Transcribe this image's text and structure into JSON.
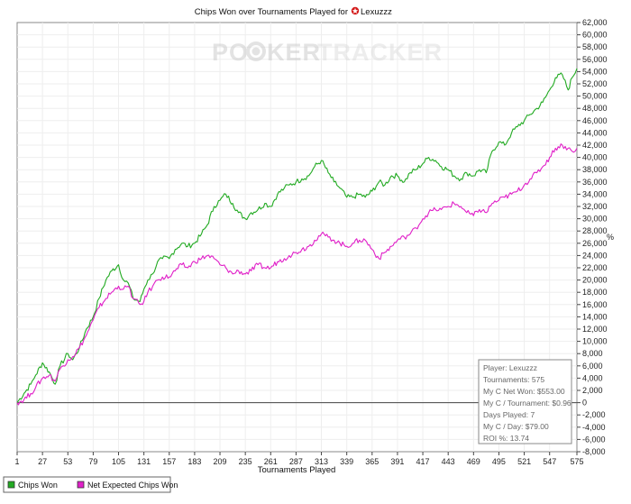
{
  "chart_data": {
    "type": "line",
    "title_prefix": "Chips Won over Tournaments Played for",
    "player_name": "Lexuzzz",
    "watermark": [
      "PO",
      "KER",
      "TRACKER"
    ],
    "xlabel": "Tournaments Played",
    "ylabel": "",
    "y_unit_glyph": "%",
    "xlim": [
      1,
      575
    ],
    "ylim": [
      -8000,
      62000
    ],
    "x_ticks": [
      1,
      27,
      53,
      79,
      105,
      131,
      157,
      183,
      209,
      235,
      261,
      287,
      313,
      339,
      365,
      391,
      417,
      443,
      469,
      495,
      521,
      547,
      575
    ],
    "y_ticks": [
      -8000,
      -6000,
      -4000,
      -2000,
      0,
      2000,
      4000,
      6000,
      8000,
      10000,
      12000,
      14000,
      16000,
      18000,
      20000,
      22000,
      24000,
      26000,
      28000,
      30000,
      32000,
      34000,
      36000,
      38000,
      40000,
      42000,
      44000,
      46000,
      48000,
      50000,
      52000,
      54000,
      56000,
      58000,
      60000,
      62000
    ],
    "y_tick_labels": [
      "-8,000",
      "-6,000",
      "-4,000",
      "-2,000",
      "0",
      "2,000",
      "4,000",
      "6,000",
      "8,000",
      "10,000",
      "12,000",
      "14,000",
      "16,000",
      "18,000",
      "20,000",
      "22,000",
      "24,000",
      "26,000",
      "28,000",
      "30,000",
      "32,000",
      "34,000",
      "36,000",
      "38,000",
      "40,000",
      "42,000",
      "44,000",
      "46,000",
      "48,000",
      "50,000",
      "52,000",
      "54,000",
      "56,000",
      "58,000",
      "60,000",
      "62,000"
    ],
    "grid": true,
    "legend_position": "bottom-left",
    "series": [
      {
        "name": "Chips Won",
        "color": "#22aa22",
        "x": [
          1,
          8,
          15,
          20,
          27,
          34,
          40,
          45,
          53,
          58,
          65,
          72,
          79,
          85,
          92,
          98,
          105,
          110,
          115,
          120,
          127,
          131,
          135,
          140,
          145,
          150,
          157,
          163,
          170,
          176,
          183,
          190,
          196,
          203,
          209,
          215,
          222,
          228,
          235,
          241,
          248,
          255,
          261,
          268,
          275,
          280,
          287,
          293,
          300,
          306,
          313,
          320,
          326,
          332,
          339,
          345,
          352,
          358,
          365,
          372,
          378,
          385,
          391,
          398,
          404,
          410,
          417,
          423,
          430,
          436,
          443,
          449,
          456,
          462,
          469,
          475,
          482,
          488,
          495,
          501,
          508,
          514,
          521,
          527,
          534,
          540,
          547,
          553,
          560,
          566,
          570,
          575
        ],
        "y": [
          0,
          1500,
          3000,
          4500,
          6500,
          5000,
          3000,
          6000,
          8000,
          7000,
          9000,
          12000,
          14000,
          17000,
          20000,
          21500,
          22500,
          20000,
          19500,
          17000,
          16500,
          18500,
          20000,
          21000,
          23000,
          23500,
          23500,
          25000,
          26000,
          25500,
          26000,
          27500,
          29000,
          32000,
          33000,
          34000,
          32500,
          31000,
          30000,
          31000,
          31500,
          32500,
          32000,
          34000,
          35000,
          35500,
          36000,
          36500,
          37000,
          38500,
          39500,
          37500,
          36000,
          35000,
          33500,
          33500,
          34000,
          33500,
          34500,
          36000,
          35500,
          37000,
          37000,
          36000,
          37500,
          38000,
          39000,
          40000,
          39500,
          38500,
          38000,
          37000,
          36500,
          37500,
          37000,
          38000,
          37500,
          41000,
          42500,
          42000,
          44000,
          45000,
          46000,
          47000,
          48000,
          49000,
          51000,
          53000,
          53500,
          51000,
          53000,
          54500
        ]
      },
      {
        "name": "Net Expected Chips Won",
        "color": "#e020c8",
        "x": [
          1,
          8,
          15,
          20,
          27,
          34,
          40,
          45,
          53,
          58,
          65,
          72,
          79,
          85,
          92,
          98,
          105,
          110,
          115,
          120,
          127,
          131,
          135,
          140,
          145,
          150,
          157,
          163,
          170,
          176,
          183,
          190,
          196,
          203,
          209,
          215,
          222,
          228,
          235,
          241,
          248,
          255,
          261,
          268,
          275,
          280,
          287,
          293,
          300,
          306,
          313,
          320,
          326,
          332,
          339,
          345,
          352,
          358,
          365,
          372,
          378,
          385,
          391,
          398,
          404,
          410,
          417,
          423,
          430,
          436,
          443,
          449,
          456,
          462,
          469,
          475,
          482,
          488,
          495,
          501,
          508,
          514,
          521,
          527,
          534,
          540,
          547,
          553,
          560,
          566,
          570,
          575
        ],
        "y": [
          0,
          500,
          1500,
          2500,
          4000,
          4500,
          3500,
          5500,
          7000,
          7500,
          9000,
          11000,
          13500,
          15500,
          17000,
          18000,
          19000,
          18500,
          19000,
          17000,
          16000,
          16500,
          18000,
          19000,
          20000,
          20500,
          20500,
          21500,
          22500,
          22000,
          23000,
          23500,
          24000,
          23500,
          22500,
          22000,
          21000,
          21500,
          21000,
          21500,
          22500,
          22000,
          22000,
          23000,
          23500,
          24000,
          24500,
          25000,
          25500,
          26500,
          27500,
          27000,
          26500,
          26000,
          25500,
          26000,
          26500,
          26500,
          25000,
          23500,
          24500,
          25500,
          26500,
          27000,
          27500,
          28500,
          30000,
          31000,
          31500,
          31500,
          32000,
          32500,
          32000,
          31000,
          30500,
          31500,
          31000,
          32500,
          33000,
          33500,
          34000,
          34500,
          35500,
          36500,
          37500,
          38500,
          40000,
          41500,
          42000,
          41500,
          41000,
          41500
        ]
      }
    ],
    "stats_box": [
      "Player: Lexuzzz",
      "Tournaments: 575",
      "My C Net Won: $553.00",
      "My C / Tournament: $0.96",
      "Days Played: 7",
      "My C / Day: $79.00",
      "ROI %: 13.74"
    ]
  }
}
